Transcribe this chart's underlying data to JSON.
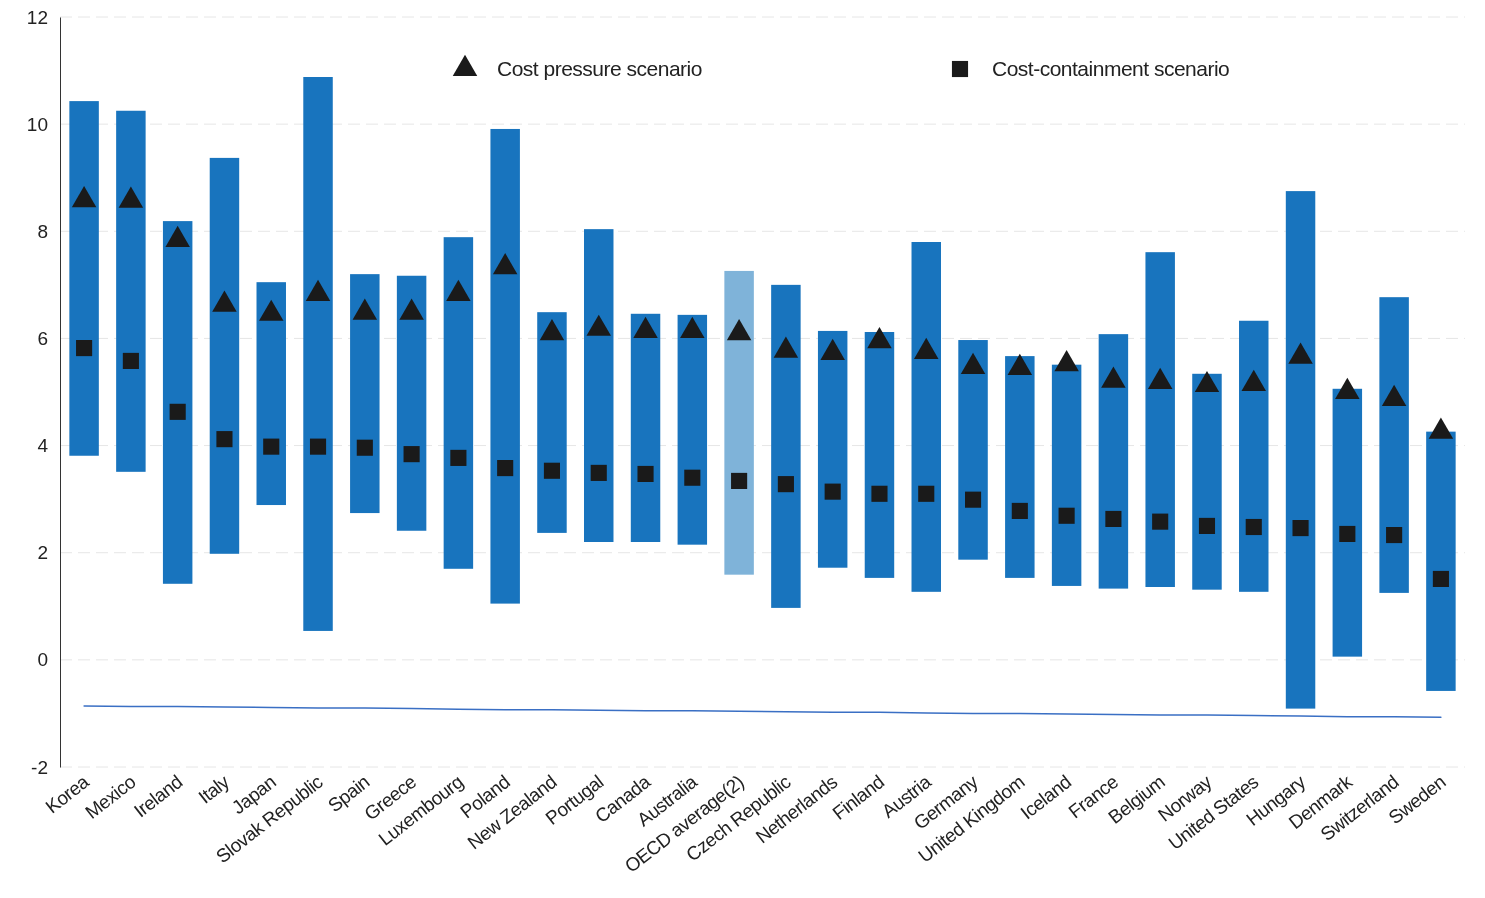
{
  "chart_data": {
    "type": "bar",
    "categories": [
      "Korea",
      "Mexico",
      "Ireland",
      "Italy",
      "Japan",
      "Slovak Republic",
      "Spain",
      "Greece",
      "Luxembourg",
      "Poland",
      "New Zealand",
      "Portugal",
      "Canada",
      "Australia",
      "OECD average(2)",
      "Czech Republic",
      "Netherlands",
      "Finland",
      "Austria",
      "Germany",
      "United Kingdom",
      "Iceland",
      "France",
      "Belgium",
      "Norway",
      "United States",
      "Hungary",
      "Denmark",
      "Switzerland",
      "Sweden"
    ],
    "series": [
      {
        "base": [
          3.81,
          3.51,
          1.42,
          1.98,
          2.89,
          0.54,
          2.74,
          2.41,
          1.7,
          1.05,
          2.37,
          2.2,
          2.2,
          2.15,
          1.59,
          0.97,
          1.72,
          1.53,
          1.27,
          1.87,
          1.53,
          1.38,
          1.33,
          1.36,
          1.31,
          1.27,
          -0.91,
          0.06,
          1.25,
          -0.58
        ],
        "values": [
          6.62,
          6.74,
          6.77,
          7.39,
          4.16,
          10.34,
          4.46,
          4.76,
          6.19,
          8.86,
          4.12,
          5.84,
          4.26,
          4.29,
          5.67,
          6.03,
          4.42,
          4.59,
          6.53,
          4.1,
          4.14,
          4.13,
          4.75,
          6.25,
          4.03,
          5.06,
          9.66,
          5.0,
          5.52,
          4.84
        ],
        "colors": [
          "#1874be",
          "#1874be",
          "#1874be",
          "#1874be",
          "#1874be",
          "#1874be",
          "#1874be",
          "#1874be",
          "#1874be",
          "#1874be",
          "#1874be",
          "#1874be",
          "#1874be",
          "#1874be",
          "#7fb3d9",
          "#1874be",
          "#1874be",
          "#1874be",
          "#1874be",
          "#1874be",
          "#1874be",
          "#1874be",
          "#1874be",
          "#1874be",
          "#1874be",
          "#1874be",
          "#1874be",
          "#1874be",
          "#1874be",
          "#1874be"
        ]
      },
      {
        "type": "scatter",
        "name": "Cost pressure scenario",
        "color": "#1a1a1a",
        "marker": "triangle",
        "values": [
          8.58,
          8.57,
          7.84,
          6.63,
          6.46,
          6.83,
          6.48,
          6.48,
          6.83,
          7.33,
          6.1,
          6.18,
          6.14,
          6.14,
          6.1,
          5.77,
          5.73,
          5.95,
          5.75,
          5.47,
          5.45,
          5.52,
          5.21,
          5.19,
          5.13,
          5.15,
          5.66,
          5.0,
          4.87,
          4.26
        ]
      },
      {
        "type": "scatter",
        "name": "Cost-containment scenario",
        "color": "#1a1a1a",
        "marker": "square",
        "values": [
          5.82,
          5.58,
          4.63,
          4.12,
          3.98,
          3.98,
          3.96,
          3.84,
          3.77,
          3.58,
          3.53,
          3.49,
          3.47,
          3.4,
          3.34,
          3.28,
          3.14,
          3.1,
          3.1,
          2.99,
          2.78,
          2.69,
          2.63,
          2.58,
          2.5,
          2.48,
          2.46,
          2.35,
          2.33,
          1.51
        ]
      },
      {
        "type": "line",
        "color": "#3a6fc4",
        "values": [
          -0.86,
          -0.87,
          -0.87,
          -0.88,
          -0.89,
          -0.9,
          -0.9,
          -0.91,
          -0.92,
          -0.93,
          -0.93,
          -0.94,
          -0.95,
          -0.95,
          -0.96,
          -0.97,
          -0.98,
          -0.98,
          -0.99,
          -1.0,
          -1.0,
          -1.01,
          -1.02,
          -1.03,
          -1.03,
          -1.04,
          -1.05,
          -1.06,
          -1.06,
          -1.07
        ]
      }
    ],
    "ylim": [
      -2,
      12
    ],
    "yticks": [
      -2,
      0,
      2,
      4,
      6,
      8,
      10,
      12
    ],
    "grid": "y",
    "legend": "top"
  }
}
